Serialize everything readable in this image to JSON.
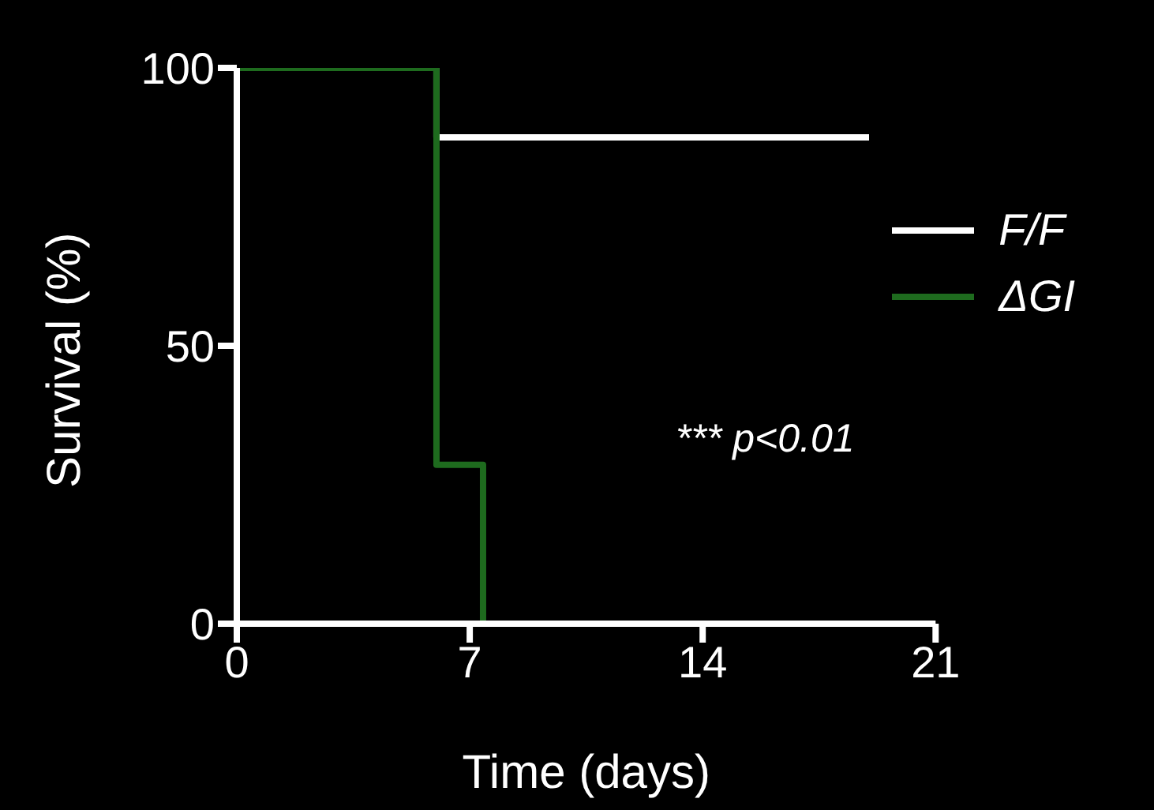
{
  "chart_data": {
    "type": "step",
    "xlabel": "Time (days)",
    "ylabel": "Survival (%)",
    "xlim": [
      0,
      21
    ],
    "xticks": [
      0,
      7,
      14,
      21
    ],
    "ylim": [
      0,
      100
    ],
    "yticks": [
      0,
      50,
      100
    ],
    "series": [
      {
        "name": "F/F",
        "color": "#ffffff",
        "x": [
          0,
          6,
          19
        ],
        "values": [
          100,
          87.5,
          87.5
        ]
      },
      {
        "name": "ΔGI",
        "color": "#1e6b1e",
        "x": [
          0,
          6,
          7.4
        ],
        "values": [
          100,
          28.6,
          0
        ]
      }
    ],
    "legend": "top right",
    "grid": false,
    "marker": "none",
    "line_style": "solid",
    "annotations": [
      "*** p<0.01"
    ]
  }
}
